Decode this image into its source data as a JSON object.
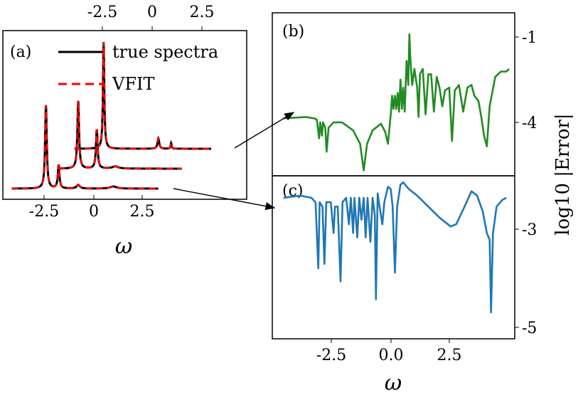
{
  "chart_data": [
    {
      "panel": "a",
      "type": "line",
      "panel_label": "(a)",
      "xlabel": "ω",
      "x_ticks_bottom": [
        "-2.5",
        "0",
        "2.5"
      ],
      "x_ticks_top": [
        "-2.5",
        "0",
        "2.5"
      ],
      "xlim": [
        -4.2,
        3.7
      ],
      "legend": {
        "placement": "top-right",
        "entries": [
          {
            "label": "true spectra",
            "color": "#000000",
            "style": "solid"
          },
          {
            "label": "VFIT",
            "color": "#ff0000",
            "style": "dashed"
          }
        ]
      },
      "series": [
        {
          "name": "true spectra",
          "offset": 0,
          "x_start": -4.2,
          "x_end": 3.3,
          "peaks": [
            {
              "x": -2.45,
              "h": 117,
              "w": 0.05
            },
            {
              "x": -1.8,
              "h": 33,
              "w": 0.05
            },
            {
              "x": -0.8,
              "h": 5,
              "w": 0.1
            },
            {
              "x": 1.0,
              "h": 3,
              "w": 0.2
            }
          ]
        },
        {
          "name": "true spectra",
          "offset": 28,
          "x_start": -1.8,
          "x_end": 4.5,
          "peaks": [
            {
              "x": -0.8,
              "h": 95,
              "w": 0.05
            },
            {
              "x": 0.15,
              "h": 55,
              "w": 0.05
            },
            {
              "x": 1.1,
              "h": 3,
              "w": 0.2
            }
          ]
        },
        {
          "name": "true spectra",
          "offset": 56,
          "x_start": -1.0,
          "x_end": 6.0,
          "peaks": [
            {
              "x": 0.5,
              "h": 150,
              "w": 0.04
            },
            {
              "x": 3.3,
              "h": 15,
              "w": 0.05
            },
            {
              "x": 3.95,
              "h": 8,
              "w": 0.03
            }
          ]
        }
      ]
    },
    {
      "panel": "b",
      "type": "line",
      "panel_label": "(b)",
      "ylabel": "log10 |Error|",
      "y_ticks": [
        "-1",
        "-4"
      ],
      "ylim": [
        -5.8,
        0.3
      ],
      "xlim": [
        -4.4,
        4.3
      ],
      "color": "#228b22",
      "points": [
        [
          -4.0,
          -3.65
        ],
        [
          -3.2,
          -3.6
        ],
        [
          -2.9,
          -3.65
        ],
        [
          -2.8,
          -3.7
        ],
        [
          -2.72,
          -4.4
        ],
        [
          -2.68,
          -3.8
        ],
        [
          -2.62,
          -4.3
        ],
        [
          -2.58,
          -3.8
        ],
        [
          -2.5,
          -4.0
        ],
        [
          -2.45,
          -4.9
        ],
        [
          -2.38,
          -4.0
        ],
        [
          -2.2,
          -3.8
        ],
        [
          -1.9,
          -3.8
        ],
        [
          -1.5,
          -4.1
        ],
        [
          -1.25,
          -4.6
        ],
        [
          -1.12,
          -5.6
        ],
        [
          -1.0,
          -4.6
        ],
        [
          -0.8,
          -4.1
        ],
        [
          -0.5,
          -3.85
        ],
        [
          -0.35,
          -4.15
        ],
        [
          -0.25,
          -4.6
        ],
        [
          -0.15,
          -3.5
        ],
        [
          -0.1,
          -2.8
        ],
        [
          -0.05,
          -3.3
        ],
        [
          0.0,
          -2.8
        ],
        [
          0.05,
          -3.3
        ],
        [
          0.1,
          -2.7
        ],
        [
          0.15,
          -3.4
        ],
        [
          0.2,
          -2.2
        ],
        [
          0.25,
          -3.3
        ],
        [
          0.3,
          -2.5
        ],
        [
          0.35,
          -3.4
        ],
        [
          0.42,
          -1.5
        ],
        [
          0.48,
          -2.4
        ],
        [
          0.52,
          -0.5
        ],
        [
          0.56,
          -1.5
        ],
        [
          0.62,
          -2.4
        ],
        [
          0.7,
          -1.8
        ],
        [
          0.8,
          -2.5
        ],
        [
          0.85,
          -3.6
        ],
        [
          0.9,
          -2.0
        ],
        [
          1.0,
          -1.8
        ],
        [
          1.1,
          -3.5
        ],
        [
          1.2,
          -2.0
        ],
        [
          1.3,
          -2.0
        ],
        [
          1.4,
          -3.4
        ],
        [
          1.5,
          -2.1
        ],
        [
          1.6,
          -2.5
        ],
        [
          1.7,
          -3.2
        ],
        [
          1.8,
          -2.6
        ],
        [
          1.95,
          -2.5
        ],
        [
          2.05,
          -4.5
        ],
        [
          2.15,
          -2.6
        ],
        [
          2.3,
          -2.4
        ],
        [
          2.45,
          -3.4
        ],
        [
          2.6,
          -2.5
        ],
        [
          2.75,
          -2.4
        ],
        [
          2.85,
          -2.8
        ],
        [
          3.0,
          -3.0
        ],
        [
          3.1,
          -3.6
        ],
        [
          3.2,
          -4.3
        ],
        [
          3.3,
          -4.7
        ],
        [
          3.4,
          -3.2
        ],
        [
          3.6,
          -2.1
        ],
        [
          3.8,
          -1.9
        ],
        [
          4.0,
          -1.9
        ],
        [
          4.1,
          -1.8
        ]
      ]
    },
    {
      "panel": "c",
      "type": "line",
      "panel_label": "(c)",
      "xlabel": "ω",
      "x_ticks": [
        "-2.5",
        "0.0",
        "2.5"
      ],
      "y_ticks": [
        "-3",
        "-5"
      ],
      "ylim": [
        -5.6,
        -1.9
      ],
      "xlim": [
        -4.4,
        4.3
      ],
      "color": "#1f77b4",
      "points": [
        [
          -4.0,
          -2.4
        ],
        [
          -3.4,
          -2.35
        ],
        [
          -3.0,
          -2.4
        ],
        [
          -2.85,
          -2.5
        ],
        [
          -2.75,
          -4.0
        ],
        [
          -2.7,
          -2.5
        ],
        [
          -2.6,
          -2.6
        ],
        [
          -2.53,
          -3.9
        ],
        [
          -2.46,
          -2.5
        ],
        [
          -2.3,
          -2.5
        ],
        [
          -2.2,
          -3.2
        ],
        [
          -2.15,
          -2.6
        ],
        [
          -2.05,
          -2.6
        ],
        [
          -1.95,
          -4.3
        ],
        [
          -1.88,
          -2.5
        ],
        [
          -1.75,
          -2.4
        ],
        [
          -1.65,
          -3.0
        ],
        [
          -1.58,
          -2.4
        ],
        [
          -1.5,
          -3.2
        ],
        [
          -1.45,
          -2.4
        ],
        [
          -1.35,
          -3.3
        ],
        [
          -1.28,
          -2.4
        ],
        [
          -1.2,
          -2.9
        ],
        [
          -1.12,
          -2.4
        ],
        [
          -1.05,
          -3.3
        ],
        [
          -0.98,
          -2.4
        ],
        [
          -0.88,
          -3.4
        ],
        [
          -0.8,
          -2.4
        ],
        [
          -0.72,
          -2.8
        ],
        [
          -0.68,
          -4.7
        ],
        [
          -0.62,
          -2.3
        ],
        [
          -0.55,
          -2.6
        ],
        [
          -0.45,
          -3.0
        ],
        [
          -0.38,
          -2.5
        ],
        [
          -0.25,
          -2.15
        ],
        [
          -0.15,
          -2.2
        ],
        [
          -0.08,
          -2.6
        ],
        [
          0.0,
          -4.1
        ],
        [
          0.08,
          -2.6
        ],
        [
          0.2,
          -2.1
        ],
        [
          0.3,
          -2.05
        ],
        [
          0.5,
          -2.2
        ],
        [
          0.8,
          -2.35
        ],
        [
          1.2,
          -2.6
        ],
        [
          1.6,
          -2.85
        ],
        [
          2.0,
          -3.05
        ],
        [
          2.2,
          -3.0
        ],
        [
          2.5,
          -2.6
        ],
        [
          2.75,
          -2.25
        ],
        [
          2.95,
          -2.35
        ],
        [
          3.15,
          -2.7
        ],
        [
          3.3,
          -3.2
        ],
        [
          3.4,
          -3.35
        ],
        [
          3.45,
          -5.0
        ],
        [
          3.52,
          -3.2
        ],
        [
          3.65,
          -2.6
        ],
        [
          3.85,
          -2.45
        ],
        [
          4.0,
          -2.4
        ]
      ]
    }
  ]
}
